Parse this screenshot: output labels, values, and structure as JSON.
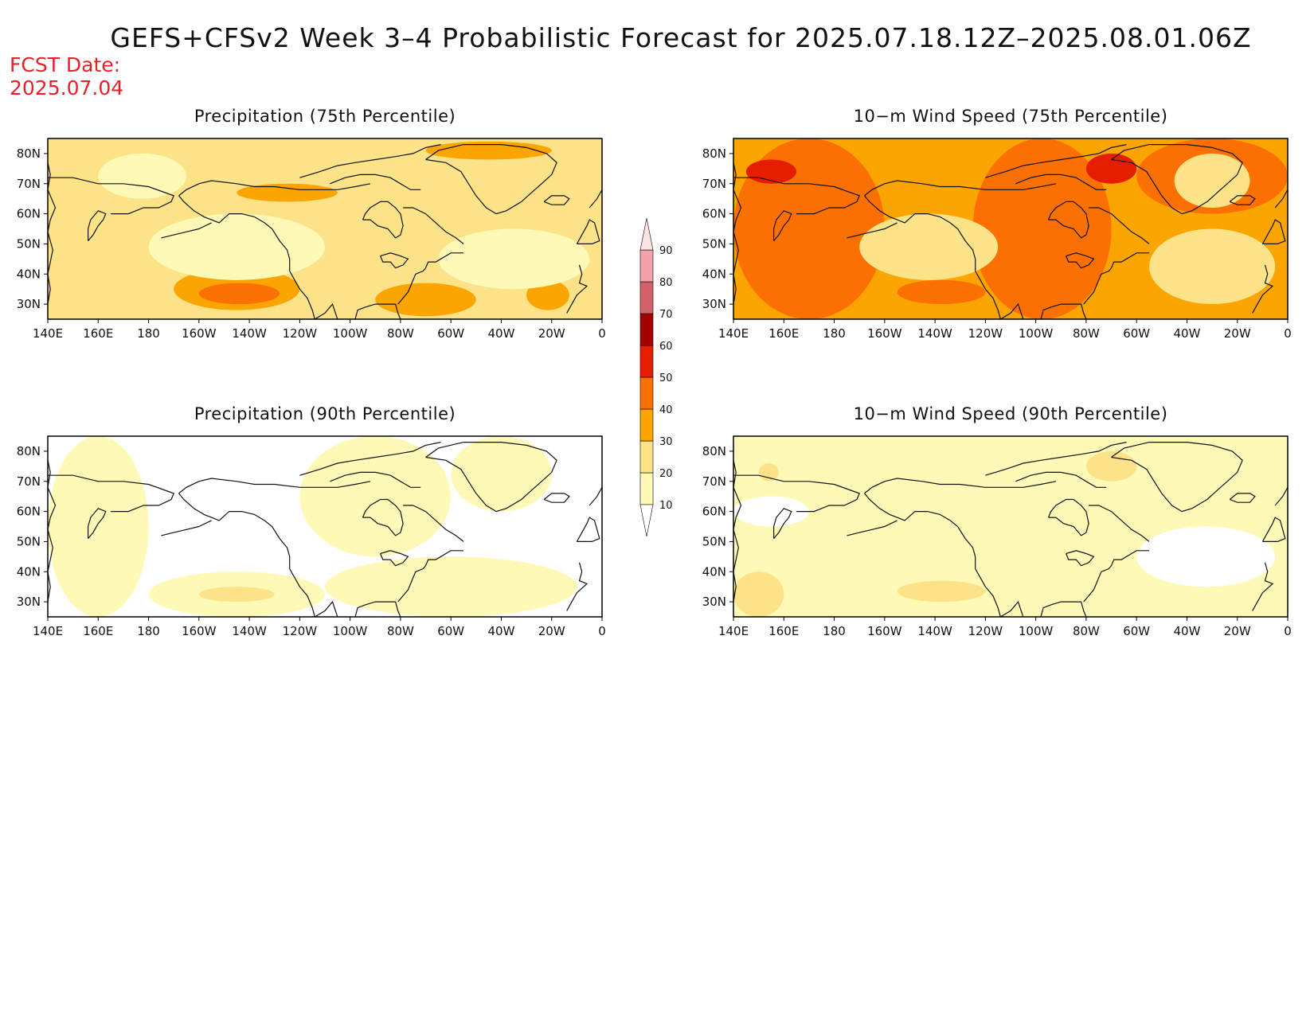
{
  "title": "GEFS+CFSv2 Week 3–4 Probabilistic Forecast for 2025.07.18.12Z–2025.08.01.06Z",
  "fcst_date_label": "FCST Date:",
  "fcst_date_value": "2025.07.04",
  "colors": {
    "white": "#ffffff",
    "c10": "#fff9b8",
    "c20": "#fde387",
    "c30": "#fca500",
    "c40": "#fb7000",
    "c50": "#e61e00",
    "c60": "#a50000",
    "c70": "#d4606a",
    "c80": "#f1a3ab",
    "c90": "#fbe2e4",
    "coast": "#111111"
  },
  "colorbar": {
    "levels": [
      "10",
      "20",
      "30",
      "40",
      "50",
      "60",
      "70",
      "80",
      "90"
    ],
    "values": [
      10,
      20,
      30,
      40,
      50,
      60,
      70,
      80,
      90
    ]
  },
  "lon_labels": [
    "140E",
    "160E",
    "180",
    "160W",
    "140W",
    "120W",
    "100W",
    "80W",
    "60W",
    "40W",
    "20W",
    "0"
  ],
  "lat_labels": [
    "80N",
    "70N",
    "60N",
    "50N",
    "40N",
    "30N"
  ],
  "chart_data": [
    {
      "type": "heatmap",
      "title": "Precipitation (75th Percentile)",
      "variable": "Precipitation",
      "percentile": 75,
      "lon_range": [
        140,
        360
      ],
      "lat_range": [
        25,
        85
      ],
      "background_level": 20,
      "regions": [
        {
          "level": 30,
          "lon": [
            190,
            240
          ],
          "lat": [
            28,
            42
          ]
        },
        {
          "level": 30,
          "lon": [
            270,
            310
          ],
          "lat": [
            26,
            37
          ]
        },
        {
          "level": 30,
          "lon": [
            330,
            347
          ],
          "lat": [
            28,
            38
          ]
        },
        {
          "level": 30,
          "lon": [
            215,
            255
          ],
          "lat": [
            64,
            70
          ]
        },
        {
          "level": 30,
          "lon": [
            290,
            340
          ],
          "lat": [
            78,
            84
          ]
        },
        {
          "level": 40,
          "lon": [
            200,
            232
          ],
          "lat": [
            30,
            37
          ]
        },
        {
          "level": 10,
          "lon": [
            180,
            250
          ],
          "lat": [
            38,
            60
          ]
        },
        {
          "level": 10,
          "lon": [
            295,
            355
          ],
          "lat": [
            35,
            55
          ]
        },
        {
          "level": 10,
          "lon": [
            160,
            195
          ],
          "lat": [
            65,
            80
          ]
        }
      ]
    },
    {
      "type": "heatmap",
      "title": "10−m Wind Speed (75th Percentile)",
      "variable": "10-m Wind Speed",
      "percentile": 75,
      "lon_range": [
        140,
        360
      ],
      "lat_range": [
        25,
        85
      ],
      "background_level": 30,
      "regions": [
        {
          "level": 40,
          "lon": [
            140,
            200
          ],
          "lat": [
            25,
            85
          ]
        },
        {
          "level": 40,
          "lon": [
            235,
            290
          ],
          "lat": [
            25,
            85
          ]
        },
        {
          "level": 40,
          "lon": [
            300,
            360
          ],
          "lat": [
            60,
            85
          ]
        },
        {
          "level": 40,
          "lon": [
            205,
            240
          ],
          "lat": [
            30,
            38
          ]
        },
        {
          "level": 50,
          "lon": [
            280,
            300
          ],
          "lat": [
            70,
            80
          ]
        },
        {
          "level": 50,
          "lon": [
            145,
            165
          ],
          "lat": [
            70,
            78
          ]
        },
        {
          "level": 20,
          "lon": [
            190,
            245
          ],
          "lat": [
            38,
            60
          ]
        },
        {
          "level": 20,
          "lon": [
            305,
            355
          ],
          "lat": [
            30,
            55
          ]
        },
        {
          "level": 20,
          "lon": [
            315,
            345
          ],
          "lat": [
            62,
            80
          ]
        }
      ]
    },
    {
      "type": "heatmap",
      "title": "Precipitation (90th Percentile)",
      "variable": "Precipitation",
      "percentile": 90,
      "lon_range": [
        140,
        360
      ],
      "lat_range": [
        25,
        85
      ],
      "background_level": 0,
      "regions": [
        {
          "level": 10,
          "lon": [
            140,
            180
          ],
          "lat": [
            25,
            85
          ]
        },
        {
          "level": 10,
          "lon": [
            180,
            250
          ],
          "lat": [
            25,
            40
          ]
        },
        {
          "level": 10,
          "lon": [
            250,
            350
          ],
          "lat": [
            25,
            45
          ]
        },
        {
          "level": 10,
          "lon": [
            240,
            300
          ],
          "lat": [
            45,
            85
          ]
        },
        {
          "level": 10,
          "lon": [
            300,
            340
          ],
          "lat": [
            60,
            85
          ]
        },
        {
          "level": 20,
          "lon": [
            200,
            230
          ],
          "lat": [
            30,
            35
          ]
        }
      ]
    },
    {
      "type": "heatmap",
      "title": "10−m Wind Speed (90th Percentile)",
      "variable": "10-m Wind Speed",
      "percentile": 90,
      "lon_range": [
        140,
        360
      ],
      "lat_range": [
        25,
        85
      ],
      "background_level": 10,
      "regions": [
        {
          "level": 20,
          "lon": [
            140,
            160
          ],
          "lat": [
            25,
            40
          ]
        },
        {
          "level": 20,
          "lon": [
            205,
            240
          ],
          "lat": [
            30,
            37
          ]
        },
        {
          "level": 20,
          "lon": [
            150,
            158
          ],
          "lat": [
            70,
            76
          ]
        },
        {
          "level": 20,
          "lon": [
            280,
            300
          ],
          "lat": [
            70,
            80
          ]
        },
        {
          "level": 0,
          "lon": [
            300,
            355
          ],
          "lat": [
            35,
            55
          ]
        },
        {
          "level": 0,
          "lon": [
            140,
            170
          ],
          "lat": [
            55,
            65
          ]
        }
      ]
    }
  ]
}
